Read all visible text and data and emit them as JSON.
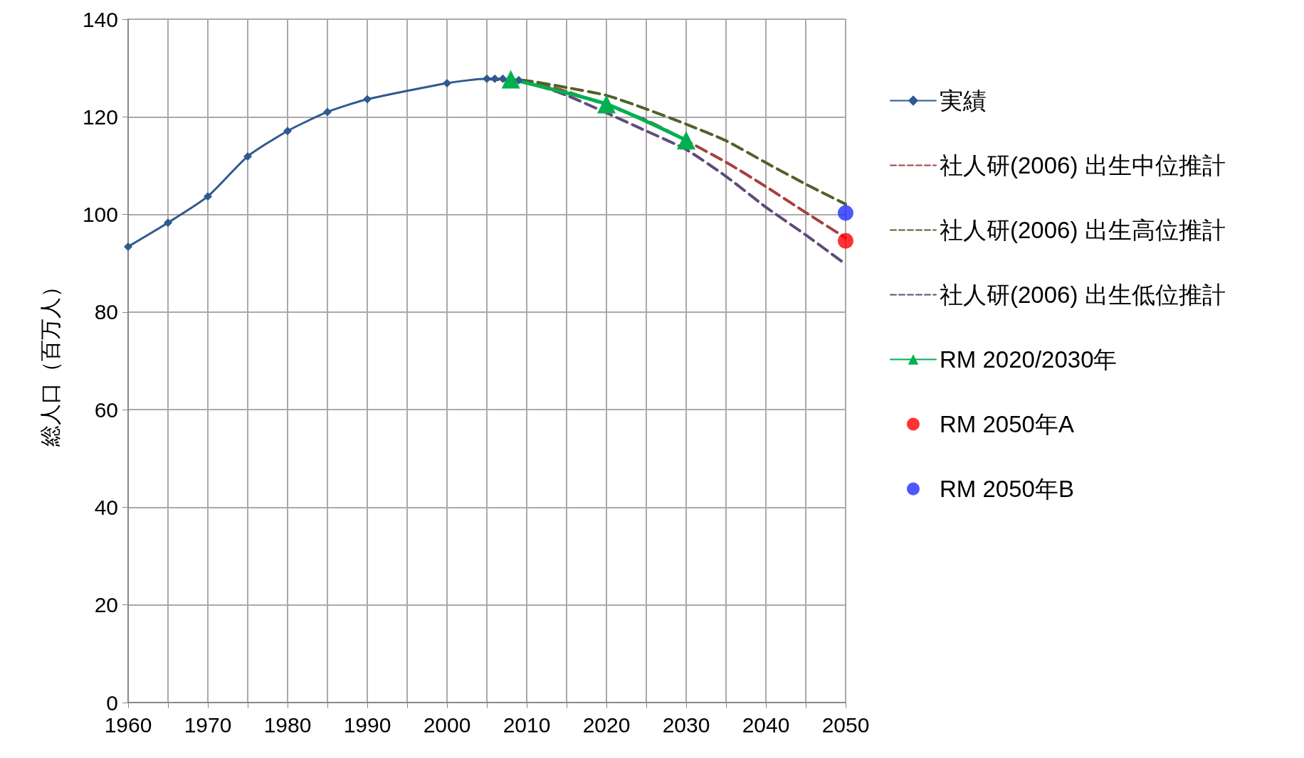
{
  "chart_data": {
    "type": "line",
    "ylabel": "総人口（百万人）",
    "xlim": [
      1960,
      2050
    ],
    "ylim": [
      0,
      140
    ],
    "xticks": [
      1960,
      {
        "value": 1965,
        "label": null
      },
      1970,
      {
        "value": 1975,
        "label": null
      },
      1980,
      {
        "value": 1985,
        "label": null
      },
      1990,
      {
        "value": 1995,
        "label": null
      },
      2000,
      {
        "value": 2005,
        "label": null
      },
      2010,
      {
        "value": 2015,
        "label": null
      },
      2020,
      {
        "value": 2025,
        "label": null
      },
      2030,
      {
        "value": 2035,
        "label": null
      },
      2040,
      {
        "value": 2045,
        "label": null
      },
      2050
    ],
    "yticks": [
      0,
      20,
      40,
      60,
      80,
      100,
      120,
      140
    ],
    "grid": true,
    "legend": "right",
    "series": [
      {
        "name": "実績",
        "color": "#2f5a8f",
        "marker": "diamond",
        "line_style": "solid",
        "x": [
          1960,
          1965,
          1970,
          1975,
          1980,
          1985,
          1990,
          2000,
          2005,
          2006,
          2007,
          2008,
          2009
        ],
        "values": [
          93.4,
          98.3,
          103.7,
          111.9,
          117.1,
          121.0,
          123.6,
          126.9,
          127.8,
          127.8,
          127.8,
          127.7,
          127.5
        ]
      },
      {
        "name": "社人研(2006) 出生中位推計",
        "color": "#a5403f",
        "marker": "none",
        "line_style": "dashed",
        "x": [
          2005,
          2010,
          2015,
          2025,
          2035,
          2040,
          2045,
          2050
        ],
        "values": [
          127.8,
          127.2,
          125.2,
          119.3,
          110.7,
          105.7,
          100.4,
          95.2
        ]
      },
      {
        "name": "社人研(2006) 出生高位推計",
        "color": "#4f6228",
        "marker": "none",
        "line_style": "dashed",
        "x": [
          2005,
          2010,
          2015,
          2020,
          2025,
          2030,
          2035,
          2040,
          2045,
          2050
        ],
        "values": [
          127.8,
          127.4,
          126.0,
          124.4,
          121.6,
          118.5,
          115.1,
          110.6,
          106.2,
          102.1
        ]
      },
      {
        "name": "社人研(2006) 出生低位推計",
        "color": "#604a7b",
        "marker": "none",
        "line_style": "dashed",
        "x": [
          2005,
          2010,
          2015,
          2025,
          2030,
          2035,
          2040,
          2045,
          2050
        ],
        "values": [
          127.8,
          127.0,
          124.4,
          117.1,
          113.3,
          107.8,
          101.5,
          95.8,
          89.8
        ]
      },
      {
        "name": "RM 2020/2030年",
        "color": "#00b050",
        "marker": "triangle",
        "line_style": "solid",
        "x": [
          2008,
          2020,
          2030
        ],
        "values": [
          127.7,
          122.6,
          115.2
        ]
      },
      {
        "name": "RM 2050年A",
        "type": "scatter",
        "color": "#ff0000",
        "marker": "circle",
        "x": [
          2050
        ],
        "values": [
          94.6
        ]
      },
      {
        "name": "RM 2050年B",
        "type": "scatter",
        "color": "#2030ff",
        "marker": "circle",
        "x": [
          2050
        ],
        "values": [
          100.3
        ]
      }
    ]
  }
}
